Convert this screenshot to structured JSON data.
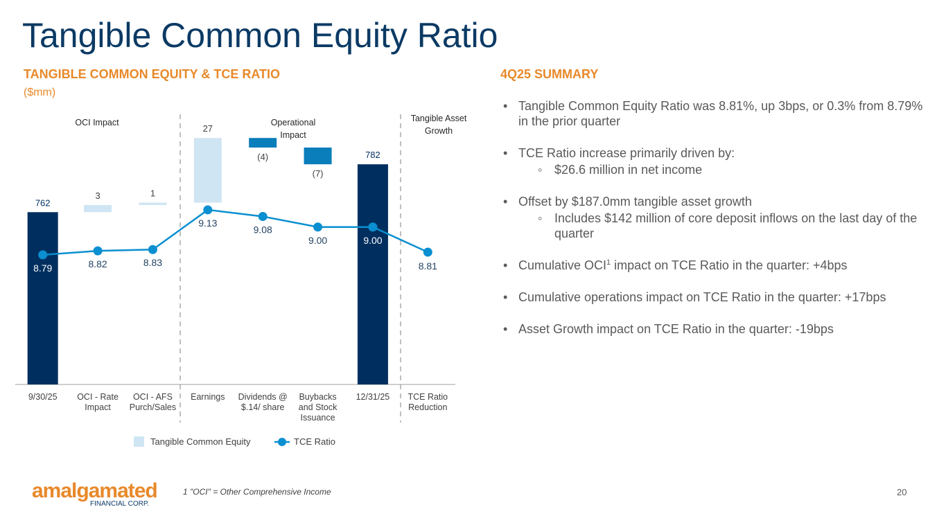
{
  "header": {
    "title": "Tangible Common Equity Ratio"
  },
  "chart_data": {
    "type": "waterfall",
    "title": "TANGIBLE COMMON EQUITY & TCE RATIO",
    "subtitle": "($mm)",
    "categories": [
      "9/30/25",
      "OCI - Rate Impact",
      "OCI - AFS Purch/Sales",
      "Earnings",
      "Dividends @ $.14/ share",
      "Buybacks and Stock Issuance",
      "12/31/25",
      "TCE Ratio Reduction"
    ],
    "totals": [
      0,
      6
    ],
    "ylim": [
      690,
      800
    ],
    "y2lim": [
      7.81,
      9.8
    ],
    "annotations": [
      "OCI Impact",
      "Operational Impact",
      "Tangible Asset Growth"
    ],
    "series": [
      {
        "name": "Tangible Common Equity",
        "color": "#cfe5f3",
        "total_color": "#002f5f",
        "decrease_color": "#0a7dbb",
        "values": [
          762,
          3,
          1,
          27,
          -4,
          -7,
          782,
          null
        ],
        "value_labels": [
          "762",
          "3",
          "1",
          "27",
          "(4)",
          "(7)",
          "782",
          null
        ]
      },
      {
        "name": "TCE Ratio",
        "color": "#0a8fd0",
        "axis": "y2",
        "values": [
          8.79,
          8.82,
          8.83,
          9.13,
          9.08,
          9.0,
          9.0,
          8.81
        ],
        "value_labels": [
          "8.79",
          "8.82",
          "8.83",
          "9.13",
          "9.08",
          "9.00",
          "9.00",
          "8.81"
        ]
      }
    ]
  },
  "summary": {
    "title": "4Q25 SUMMARY",
    "items": [
      {
        "text": "Tangible Common Equity Ratio was 8.81%, up 3bps, or 0.3% from 8.79% in the prior quarter"
      },
      {
        "text": "TCE Ratio increase primarily driven by:",
        "sub": [
          "$26.6 million in net income"
        ]
      },
      {
        "text": "Offset by $187.0mm tangible asset growth",
        "sub": [
          "Includes $142 million of core deposit inflows on the last day of the quarter"
        ]
      },
      {
        "parts": [
          "Cumulative OCI",
          "1",
          " impact on TCE Ratio in the quarter: +4bps"
        ]
      },
      {
        "text": "Cumulative operations impact on TCE Ratio in the quarter: +17bps"
      },
      {
        "text": "Asset Growth impact on TCE Ratio in the quarter: -19bps"
      }
    ]
  },
  "footnote": {
    "marker": "1",
    "text": "\"OCI\" = Other Comprehensive Income"
  },
  "page_number": "20",
  "logo": {
    "name": "amalgamated",
    "tagline": "FINANCIAL CORP."
  }
}
